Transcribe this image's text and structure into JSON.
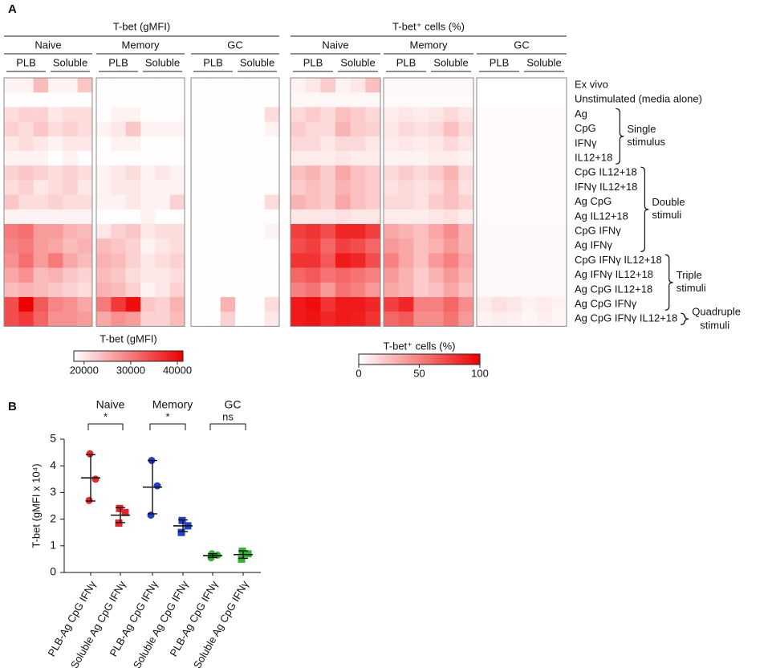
{
  "chart_data": [
    {
      "type": "heatmap",
      "panel_label": "A",
      "title": "T-bet (gMFI)",
      "groups": [
        "Naive",
        "Memory",
        "GC"
      ],
      "subgroups": [
        "PLB",
        "Soluble"
      ],
      "color_low": "#ffffff",
      "color_high": "#ee0000",
      "colorbar": {
        "title": "T-bet (gMFI)",
        "lim": [
          17800,
          41200
        ],
        "ticks": [
          20000,
          30000,
          40000
        ]
      },
      "values": [
        [
          19000,
          19000,
          24000,
          19000,
          19000,
          23000,
          18000,
          18000,
          18000,
          18000,
          18000,
          18000,
          18000,
          18000,
          18000,
          18000,
          18000,
          18000
        ],
        [
          18000,
          18000,
          18000,
          18000,
          18000,
          18000,
          18000,
          18000,
          18000,
          18000,
          18000,
          18000,
          18000,
          18000,
          18000,
          18000,
          18000,
          18000
        ],
        [
          21000,
          22000,
          22000,
          20000,
          21000,
          21000,
          18000,
          19000,
          19000,
          18000,
          18000,
          18000,
          18000,
          18000,
          18000,
          18000,
          18000,
          21000
        ],
        [
          22000,
          21000,
          23000,
          21000,
          22000,
          21000,
          19000,
          20000,
          23000,
          19000,
          19000,
          19000,
          18000,
          18000,
          18000,
          18000,
          18000,
          19000
        ],
        [
          20000,
          21000,
          20000,
          19000,
          20000,
          20000,
          18000,
          19000,
          19000,
          18000,
          18000,
          18000,
          18000,
          18000,
          18000,
          18000,
          18000,
          18000
        ],
        [
          19000,
          19000,
          19000,
          18000,
          19000,
          18000,
          18000,
          18000,
          18000,
          18000,
          18000,
          18000,
          18000,
          18000,
          18000,
          18000,
          18000,
          18000
        ],
        [
          22000,
          23000,
          22000,
          21000,
          22000,
          21000,
          19000,
          20000,
          21000,
          19000,
          20000,
          19000,
          18000,
          18000,
          18000,
          18000,
          18000,
          18000
        ],
        [
          21000,
          22000,
          20000,
          21000,
          22000,
          20000,
          19000,
          20000,
          20000,
          19000,
          19000,
          19000,
          18000,
          18000,
          18000,
          18000,
          18000,
          18000
        ],
        [
          23000,
          21000,
          21000,
          22000,
          21000,
          21000,
          19000,
          19000,
          20000,
          19000,
          19000,
          22000,
          18000,
          18000,
          18000,
          18000,
          18000,
          21000
        ],
        [
          19000,
          19000,
          19000,
          19000,
          19000,
          19000,
          18000,
          18000,
          18000,
          19000,
          18000,
          18000,
          18000,
          18000,
          18000,
          18000,
          18000,
          18000
        ],
        [
          30000,
          31000,
          27000,
          27000,
          25000,
          24000,
          20000,
          22000,
          23000,
          20000,
          21000,
          21000,
          18000,
          18000,
          18000,
          18000,
          18000,
          19000
        ],
        [
          29000,
          30000,
          27000,
          26000,
          24000,
          25000,
          24000,
          23000,
          22000,
          19000,
          20000,
          21000,
          18000,
          18000,
          18000,
          18000,
          18000,
          18000
        ],
        [
          28000,
          31000,
          27000,
          30000,
          26000,
          24000,
          25000,
          24000,
          22000,
          20000,
          21000,
          22000,
          18000,
          18000,
          18000,
          18000,
          18000,
          18000
        ],
        [
          26000,
          28000,
          24000,
          25000,
          23000,
          22000,
          24000,
          23000,
          21000,
          20000,
          20000,
          21000,
          18000,
          18000,
          18000,
          18000,
          18000,
          18000
        ],
        [
          24000,
          25000,
          24000,
          23000,
          22000,
          21000,
          25000,
          24000,
          22000,
          19000,
          20000,
          22000,
          18000,
          18000,
          18000,
          18000,
          18000,
          18000
        ],
        [
          34000,
          41000,
          33000,
          29000,
          28000,
          26000,
          30000,
          36000,
          40000,
          23000,
          22000,
          25000,
          18000,
          18000,
          25000,
          18000,
          18000,
          21000
        ],
        [
          34000,
          36000,
          32000,
          28000,
          28000,
          27000,
          26000,
          28000,
          27000,
          22000,
          22000,
          24000,
          18000,
          18000,
          22000,
          18000,
          18000,
          20000
        ]
      ]
    },
    {
      "type": "heatmap",
      "title": "T-bet⁺ cells (%)",
      "groups": [
        "Naive",
        "Memory",
        "GC"
      ],
      "subgroups": [
        "PLB",
        "Soluble"
      ],
      "color_low": "#ffffff",
      "color_high": "#ee0000",
      "colorbar": {
        "title": "T-bet⁺ cells (%)",
        "lim": [
          0,
          100
        ],
        "ticks": [
          0,
          50,
          100
        ]
      },
      "rows": [
        "Ex vivo",
        "Unstimulated (media alone)",
        "Ag",
        "CpG",
        "IFNγ",
        "IL12+18",
        "CpG IL12+18",
        "IFNγ IL12+18",
        "Ag CpG",
        "Ag IL12+18",
        "CpG IFNγ",
        "Ag IFNγ",
        "CpG IFNγ IL12+18",
        "Ag IFNγ IL12+18",
        "Ag CpG IL12+18",
        "Ag CpG IFNγ",
        "Ag CpG IFNγ IL12+18"
      ],
      "row_colors": [
        "#333333",
        "#000000",
        "#1f1fd6",
        "#1f1fd6",
        "#1f1fd6",
        "#1f1fd6",
        "#22aa22",
        "#22aa22",
        "#22aa22",
        "#22aa22",
        "#22aa22",
        "#22aa22",
        "#e0201f",
        "#e0201f",
        "#e0201f",
        "#e0201f",
        "#a020b0"
      ],
      "row_groups": [
        {
          "label": [
            "Single",
            "stimulus"
          ],
          "rows": [
            2,
            5
          ]
        },
        {
          "label": [
            "Double",
            "stimuli"
          ],
          "rows": [
            6,
            11
          ]
        },
        {
          "label": [
            "Triple",
            "stimuli"
          ],
          "rows": [
            12,
            15
          ]
        },
        {
          "label": [
            "Quadruple",
            "stimuli"
          ],
          "rows": [
            16,
            16
          ]
        }
      ],
      "values": [
        [
          5,
          10,
          20,
          5,
          10,
          25,
          3,
          3,
          3,
          3,
          3,
          3,
          0,
          0,
          0,
          0,
          0,
          0
        ],
        [
          3,
          3,
          3,
          3,
          3,
          3,
          2,
          2,
          2,
          2,
          2,
          2,
          0,
          0,
          0,
          0,
          0,
          0
        ],
        [
          15,
          20,
          15,
          25,
          20,
          15,
          8,
          10,
          8,
          10,
          15,
          10,
          2,
          2,
          2,
          2,
          2,
          2
        ],
        [
          20,
          15,
          15,
          30,
          20,
          18,
          10,
          15,
          12,
          15,
          25,
          15,
          2,
          2,
          2,
          2,
          2,
          2
        ],
        [
          15,
          15,
          10,
          15,
          15,
          10,
          8,
          10,
          8,
          10,
          15,
          10,
          2,
          2,
          2,
          2,
          2,
          2
        ],
        [
          8,
          8,
          8,
          10,
          8,
          8,
          5,
          5,
          5,
          8,
          8,
          5,
          2,
          2,
          2,
          2,
          2,
          2
        ],
        [
          25,
          30,
          20,
          35,
          25,
          20,
          15,
          20,
          15,
          20,
          30,
          15,
          2,
          2,
          2,
          2,
          2,
          2
        ],
        [
          20,
          25,
          20,
          30,
          25,
          20,
          12,
          15,
          12,
          15,
          25,
          12,
          2,
          2,
          2,
          2,
          2,
          2
        ],
        [
          30,
          25,
          20,
          35,
          25,
          20,
          15,
          15,
          12,
          20,
          25,
          18,
          2,
          2,
          2,
          2,
          2,
          2
        ],
        [
          10,
          10,
          10,
          12,
          10,
          10,
          8,
          8,
          8,
          10,
          12,
          8,
          2,
          2,
          2,
          2,
          2,
          2
        ],
        [
          75,
          80,
          70,
          85,
          85,
          75,
          35,
          30,
          25,
          35,
          45,
          30,
          3,
          3,
          3,
          3,
          3,
          3
        ],
        [
          70,
          75,
          60,
          75,
          70,
          60,
          40,
          35,
          25,
          30,
          40,
          30,
          3,
          3,
          3,
          3,
          3,
          3
        ],
        [
          80,
          80,
          65,
          90,
          85,
          70,
          50,
          35,
          25,
          40,
          50,
          35,
          3,
          3,
          3,
          3,
          3,
          3
        ],
        [
          60,
          65,
          55,
          60,
          55,
          50,
          40,
          30,
          20,
          30,
          40,
          30,
          3,
          3,
          3,
          3,
          3,
          3
        ],
        [
          50,
          55,
          40,
          55,
          50,
          40,
          35,
          30,
          20,
          25,
          35,
          25,
          3,
          3,
          3,
          3,
          3,
          3
        ],
        [
          90,
          95,
          80,
          90,
          90,
          85,
          75,
          85,
          50,
          50,
          60,
          45,
          8,
          12,
          10,
          5,
          8,
          5
        ],
        [
          90,
          92,
          85,
          90,
          88,
          80,
          60,
          65,
          45,
          45,
          55,
          40,
          5,
          8,
          6,
          4,
          6,
          4
        ]
      ]
    },
    {
      "type": "dot_plot",
      "panel_label": "B",
      "ylabel": "T-bet (gMFI x 10⁴)",
      "ylim": [
        0,
        5
      ],
      "yticks": [
        0,
        1,
        2,
        3,
        4,
        5
      ],
      "groups": [
        {
          "name": "Naive",
          "color": "#e8262a",
          "significance": "*"
        },
        {
          "name": "Memory",
          "color": "#1f3fcf",
          "significance": "*"
        },
        {
          "name": "GC",
          "color": "#2fb52f",
          "significance": "ns"
        }
      ],
      "categories": [
        "PLB-Ag CpG IFNγ",
        "Soluble Ag CpG IFNγ",
        "PLB-Ag CpG IFNγ",
        "Soluble Ag CpG IFNγ",
        "PLB-Ag CpG IFNγ",
        "Soluble Ag CpG IFNγ"
      ],
      "markers": [
        "circle",
        "square",
        "circle",
        "square",
        "circle",
        "square"
      ],
      "points": [
        [
          4.45,
          3.5,
          2.7
        ],
        [
          2.4,
          2.25,
          1.85
        ],
        [
          4.2,
          3.25,
          2.15
        ],
        [
          1.95,
          1.75,
          1.5
        ],
        [
          0.7,
          0.65,
          0.55
        ],
        [
          0.8,
          0.7,
          0.5
        ]
      ],
      "means": [
        3.55,
        2.15,
        3.2,
        1.75,
        0.63,
        0.67
      ],
      "sd": [
        0.87,
        0.28,
        1.0,
        0.22,
        0.07,
        0.14
      ]
    }
  ]
}
